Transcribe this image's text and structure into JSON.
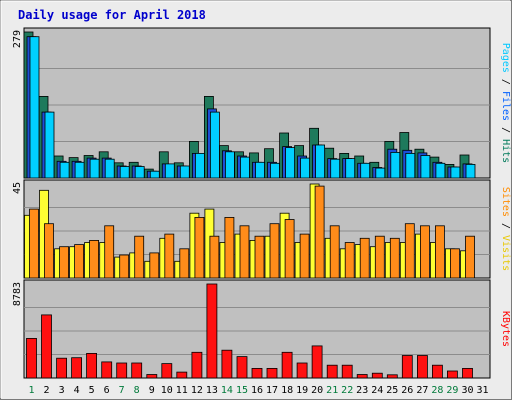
{
  "chart_data": {
    "type": "bar",
    "title": "Daily usage for April 2018",
    "days": [
      "1",
      "2",
      "3",
      "4",
      "5",
      "6",
      "7",
      "8",
      "9",
      "10",
      "11",
      "12",
      "13",
      "14",
      "15",
      "16",
      "17",
      "18",
      "19",
      "20",
      "21",
      "22",
      "23",
      "24",
      "25",
      "26",
      "27",
      "28",
      "29",
      "30",
      "31"
    ],
    "weekend_days": [
      "1",
      "7",
      "8",
      "14",
      "15",
      "21",
      "22",
      "28",
      "29"
    ],
    "panels": [
      {
        "name": "pages-files-hits",
        "ymax": 279,
        "ytick_label": "279",
        "ylabel_parts": [
          {
            "text": "Pages",
            "color": "#00c8ff"
          },
          {
            "text": " / ",
            "color": "#000000"
          },
          {
            "text": "Files",
            "color": "#0060ff"
          },
          {
            "text": " / ",
            "color": "#000000"
          },
          {
            "text": "Hits",
            "color": "#007a5a"
          }
        ],
        "series": [
          {
            "name": "Hits",
            "color": "#1e7a5c",
            "values": [
              279,
              156,
              42,
              39,
              43,
              50,
              29,
              30,
              17,
              50,
              29,
              70,
              156,
              62,
              50,
              48,
              56,
              86,
              62,
              95,
              57,
              47,
              42,
              30,
              70,
              87,
              55,
              40,
              26,
              44,
              0
            ]
          },
          {
            "name": "Files",
            "color": "#1d4fd6",
            "values": [
              270,
              126,
              32,
              32,
              38,
              38,
              23,
              23,
              13,
              27,
              23,
              47,
              132,
              52,
              42,
              30,
              30,
              60,
              42,
              63,
              37,
              37,
              28,
              20,
              55,
              53,
              48,
              30,
              21,
              27,
              0
            ]
          },
          {
            "name": "Pages",
            "color": "#00d0ff",
            "values": [
              270,
              126,
              30,
              30,
              36,
              36,
              22,
              22,
              13,
              27,
              23,
              47,
              126,
              50,
              40,
              30,
              28,
              58,
              38,
              63,
              36,
              37,
              28,
              19,
              49,
              47,
              43,
              28,
              21,
              26,
              0
            ]
          }
        ]
      },
      {
        "name": "sites-visits",
        "ymax": 45,
        "ytick_label": "45",
        "ylabel_parts": [
          {
            "text": "Sites",
            "color": "#ff8c00"
          },
          {
            "text": " / ",
            "color": "#000000"
          },
          {
            "text": "Visits",
            "color": "#e8c800"
          }
        ],
        "series": [
          {
            "name": "Visits",
            "color": "#ffff33",
            "values": [
              30,
              42,
              14,
              15,
              17,
              17,
              10,
              12,
              8,
              19,
              8,
              31,
              33,
              17,
              21,
              18,
              20,
              31,
              17,
              45,
              19,
              14,
              16,
              15,
              17,
              17,
              21,
              17,
              14,
              13,
              0
            ]
          },
          {
            "name": "Sites",
            "color": "#ff8c1a",
            "values": [
              33,
              26,
              15,
              16,
              18,
              25,
              11,
              20,
              12,
              21,
              14,
              29,
              20,
              29,
              25,
              20,
              26,
              28,
              21,
              44,
              25,
              17,
              19,
              20,
              19,
              26,
              25,
              25,
              14,
              20,
              0
            ]
          }
        ]
      },
      {
        "name": "kbytes",
        "ymax": 8783,
        "ytick_label": "8783",
        "ylabel_parts": [
          {
            "text": "KBytes",
            "color": "#ff0000"
          }
        ],
        "series": [
          {
            "name": "KBytes",
            "color": "#ff1010",
            "values": [
              3700,
              5900,
              1850,
              1900,
              2300,
              1500,
              1400,
              1400,
              330,
              1350,
              550,
              2400,
              8783,
              2600,
              2000,
              900,
              900,
              2400,
              1400,
              3000,
              1200,
              1200,
              330,
              450,
              300,
              2100,
              2100,
              1200,
              650,
              900,
              0
            ]
          }
        ]
      }
    ]
  }
}
